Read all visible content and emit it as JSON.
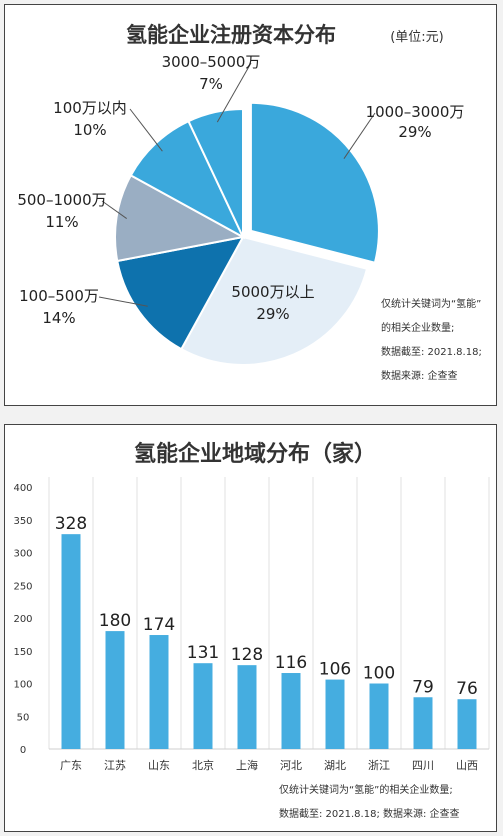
{
  "charts": [
    {
      "type": "pie",
      "title": "氢能企业注册资本分布",
      "unit_note": "(单位:元)",
      "slices": [
        {
          "label": "1000–3000万",
          "value": 29,
          "value_label": "29%",
          "color": "#3aa8dc"
        },
        {
          "label": "5000万以上",
          "value": 29,
          "value_label": "29%",
          "color": "#e4eef7"
        },
        {
          "label": "100–500万",
          "value": 14,
          "value_label": "14%",
          "color": "#0e72ad"
        },
        {
          "label": "500–1000万",
          "value": 11,
          "value_label": "11%",
          "color": "#9aaec3"
        },
        {
          "label": "100万以内",
          "value": 10,
          "value_label": "10%",
          "color": "#3aa8dc"
        },
        {
          "label": "3000–5000万",
          "value": 7,
          "value_label": "7%",
          "color": "#3aa8dc"
        }
      ],
      "notes": [
        "仅统计关键词为“氢能”",
        "的相关企业数量;",
        "数据截至: 2021.8.18;",
        "数据来源: 企查查"
      ]
    },
    {
      "type": "bar",
      "title": "氢能企业地域分布（家）",
      "categories": [
        "广东",
        "江苏",
        "山东",
        "北京",
        "上海",
        "河北",
        "湖北",
        "浙江",
        "四川",
        "山西"
      ],
      "values": [
        328,
        180,
        174,
        131,
        128,
        116,
        106,
        100,
        79,
        76
      ],
      "y_ticks": [
        0,
        50,
        100,
        150,
        200,
        250,
        300,
        350,
        400
      ],
      "ylim": [
        0,
        400
      ],
      "bar_color": "#45ade0",
      "grid": "vertical",
      "notes": [
        "仅统计关键词为“氢能”的相关企业数量;",
        "数据截至: 2021.8.18; 数据来源: 企查查"
      ]
    }
  ]
}
